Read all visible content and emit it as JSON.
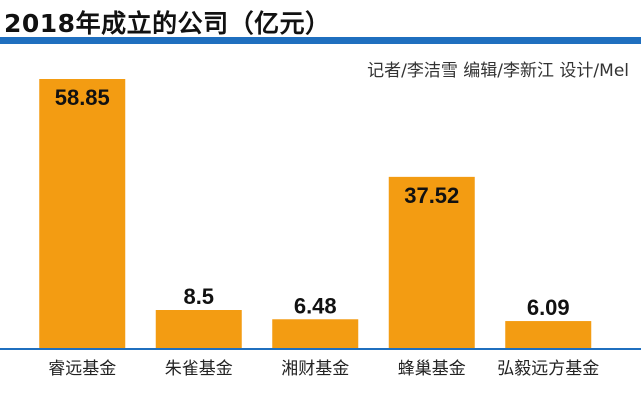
{
  "header": {
    "title": "2018年成立的公司（亿元）",
    "credit": "记者/李洁雪  编辑/李新江  设计/Mel"
  },
  "colors": {
    "bar": "#f39c12",
    "rule": "#1f6fbf",
    "axis": "#1f6fbf"
  },
  "chart_data": {
    "type": "bar",
    "title": "2018年成立的公司（亿元）",
    "categories": [
      "睿远基金",
      "朱雀基金",
      "湘财基金",
      "蜂巢基金",
      "弘毅远方基金"
    ],
    "values": [
      58.85,
      8.5,
      6.48,
      37.52,
      6.09
    ],
    "value_labels": [
      "58.85",
      "8.5",
      "6.48",
      "37.52",
      "6.09"
    ],
    "ylim": [
      0,
      60
    ],
    "grid": false,
    "legend": "none"
  }
}
